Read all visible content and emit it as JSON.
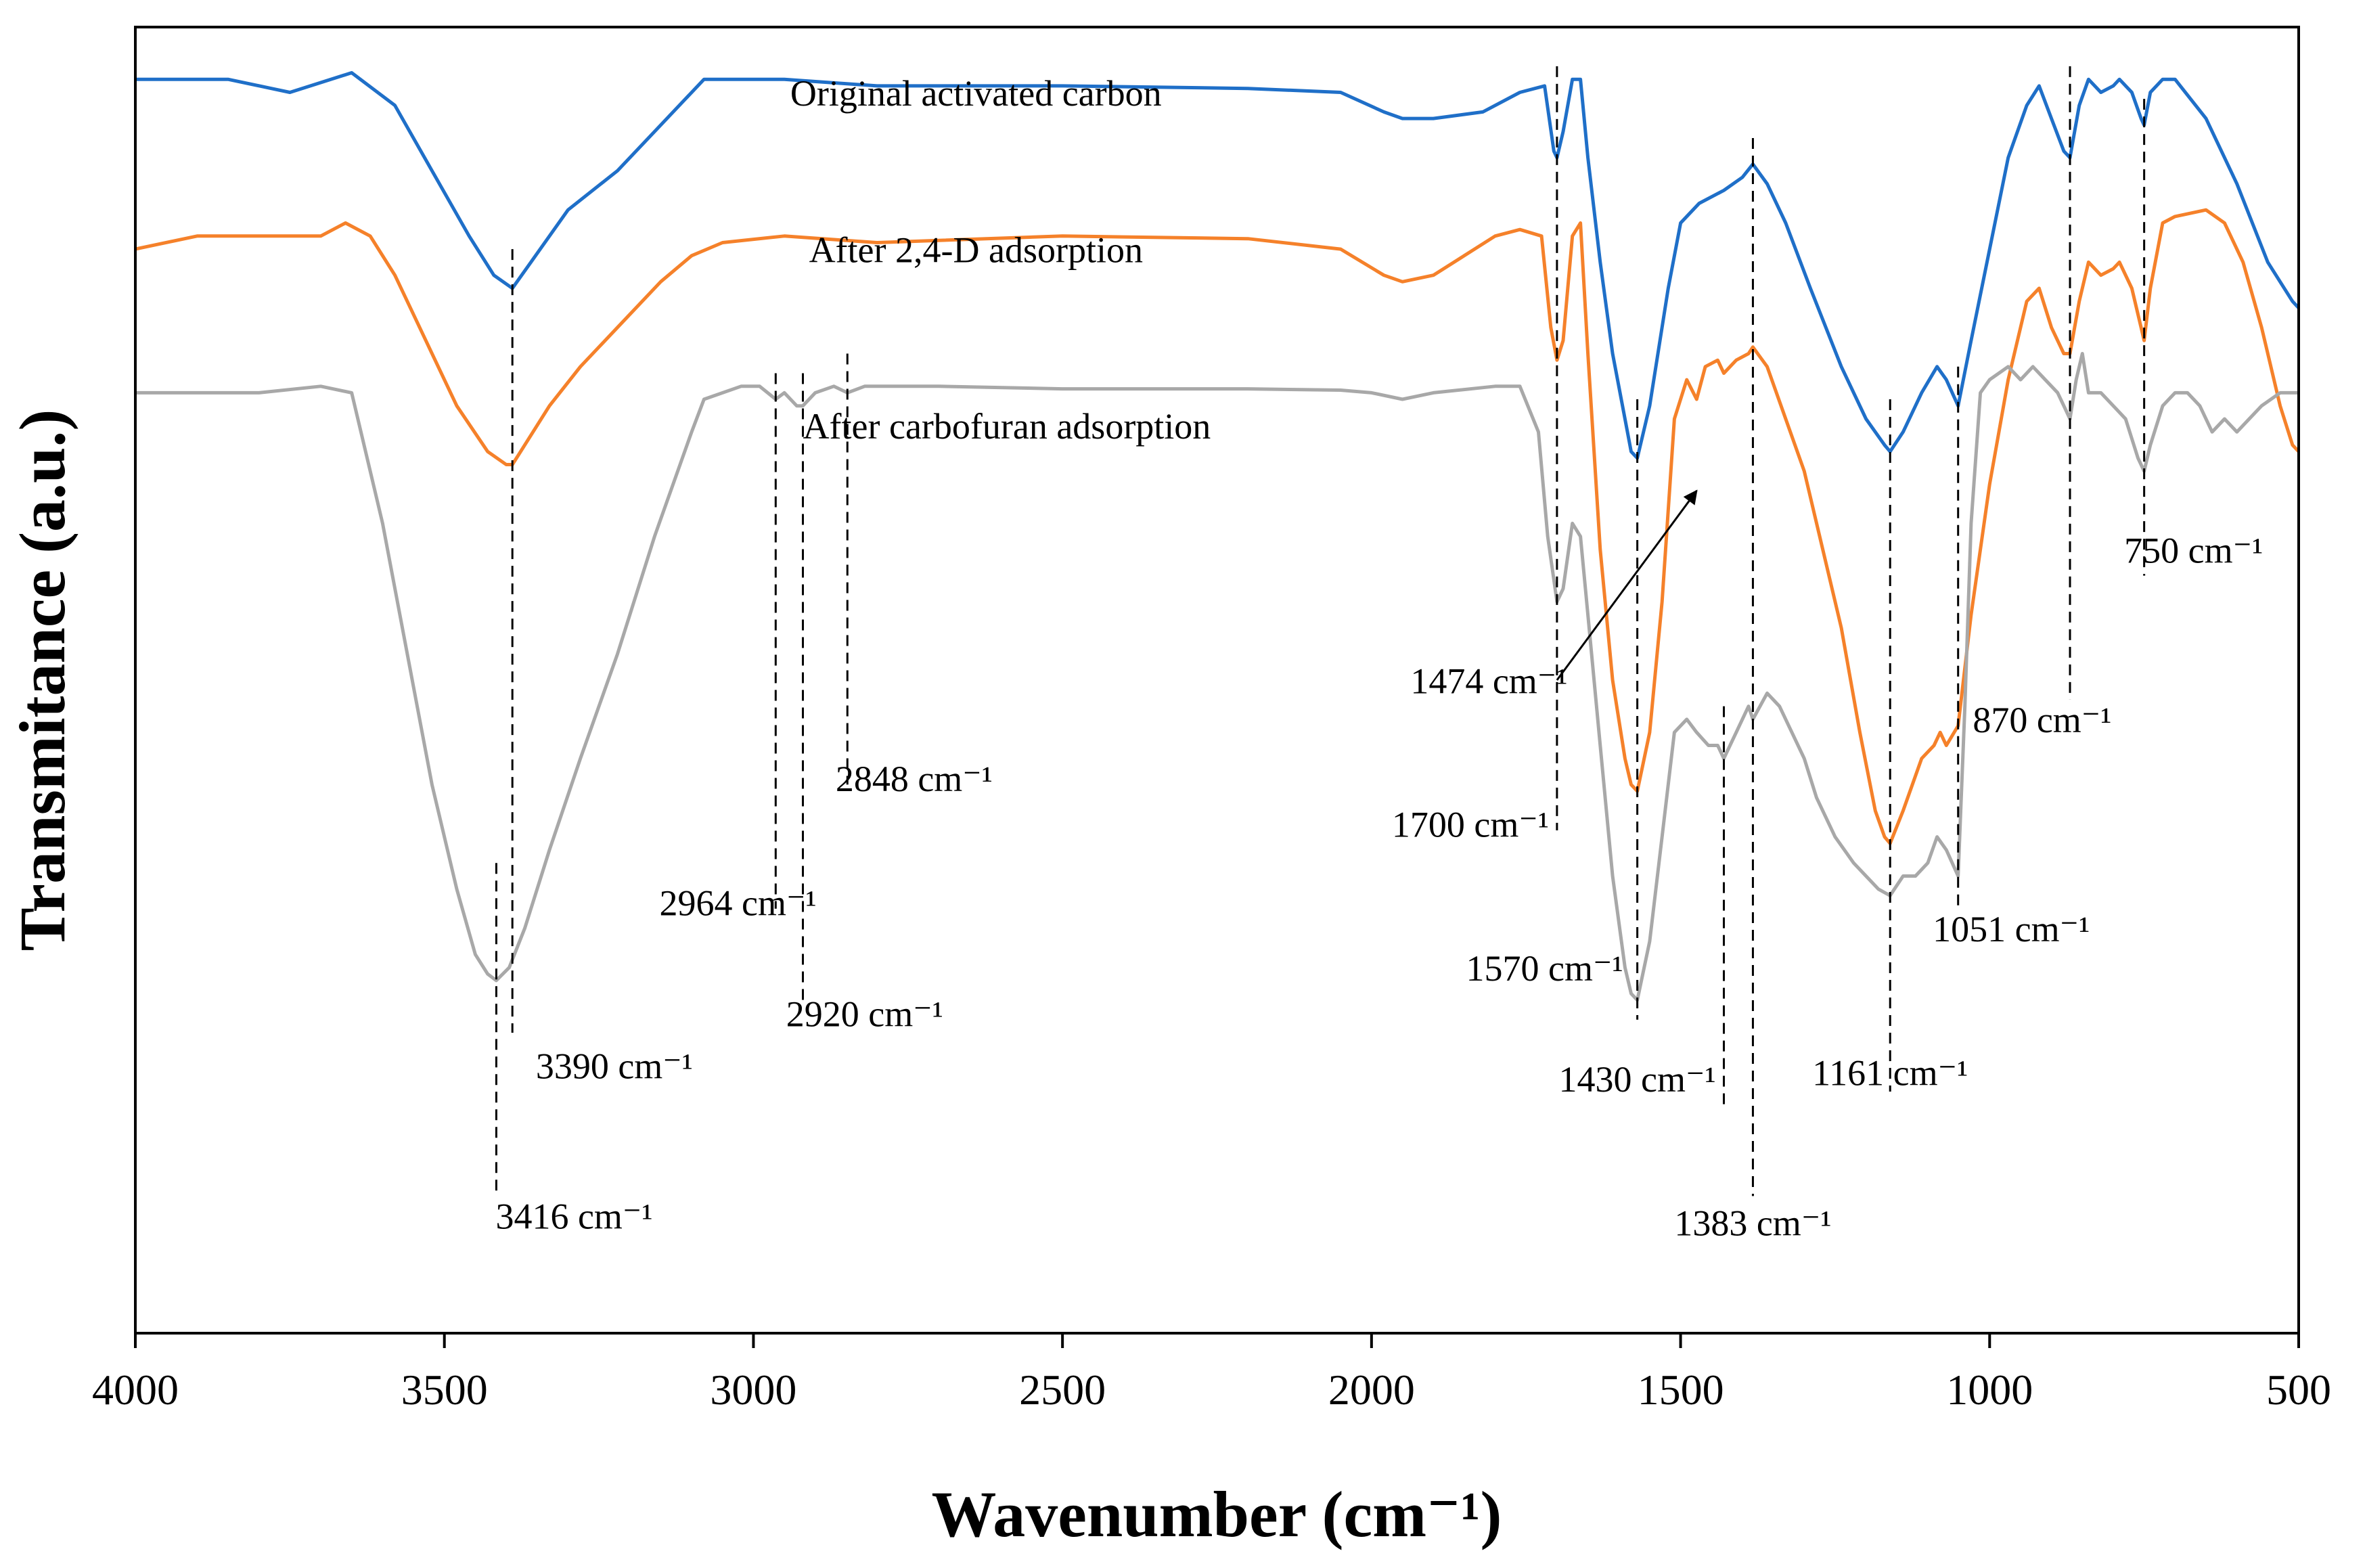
{
  "chart_data": {
    "type": "line",
    "title": "",
    "xlabel": "Wavenumber (cm⁻¹)",
    "ylabel": "Transmitance (a.u.)",
    "xlim": [
      4000,
      500
    ],
    "x_reversed": true,
    "xticks": [
      4000,
      3500,
      3000,
      2500,
      2000,
      1500,
      1000,
      500
    ],
    "xtick_labels": [
      "4000",
      "3500",
      "3000",
      "2500",
      "2000",
      "1500",
      "1000",
      "500"
    ],
    "ylim": [
      0,
      100
    ],
    "yticks": false,
    "grid": false,
    "series": [
      {
        "name": "Original activated carbon",
        "color": "#1f6fc8",
        "points": [
          [
            4000,
            96
          ],
          [
            3850,
            96
          ],
          [
            3750,
            95
          ],
          [
            3650,
            96.5
          ],
          [
            3580,
            94
          ],
          [
            3520,
            89
          ],
          [
            3460,
            84
          ],
          [
            3420,
            81
          ],
          [
            3390,
            80
          ],
          [
            3360,
            82
          ],
          [
            3300,
            86
          ],
          [
            3220,
            89
          ],
          [
            3150,
            92.5
          ],
          [
            3080,
            96
          ],
          [
            2950,
            96
          ],
          [
            2800,
            95.5
          ],
          [
            2500,
            95.5
          ],
          [
            2200,
            95.3
          ],
          [
            2050,
            95
          ],
          [
            1980,
            93.5
          ],
          [
            1950,
            93
          ],
          [
            1900,
            93
          ],
          [
            1820,
            93.5
          ],
          [
            1760,
            95
          ],
          [
            1720,
            95.5
          ],
          [
            1705,
            90.5
          ],
          [
            1700,
            90
          ],
          [
            1690,
            92
          ],
          [
            1675,
            96
          ],
          [
            1662,
            96
          ],
          [
            1650,
            90
          ],
          [
            1630,
            82
          ],
          [
            1610,
            75
          ],
          [
            1590,
            70
          ],
          [
            1580,
            67.5
          ],
          [
            1570,
            67
          ],
          [
            1550,
            71
          ],
          [
            1520,
            80
          ],
          [
            1500,
            85
          ],
          [
            1470,
            86.5
          ],
          [
            1430,
            87.5
          ],
          [
            1400,
            88.5
          ],
          [
            1383,
            89.5
          ],
          [
            1360,
            88
          ],
          [
            1330,
            85
          ],
          [
            1290,
            80
          ],
          [
            1240,
            74
          ],
          [
            1200,
            70
          ],
          [
            1170,
            68
          ],
          [
            1161,
            67.5
          ],
          [
            1140,
            69
          ],
          [
            1110,
            72
          ],
          [
            1085,
            74
          ],
          [
            1070,
            73
          ],
          [
            1051,
            71
          ],
          [
            1030,
            76
          ],
          [
            1000,
            83
          ],
          [
            970,
            90
          ],
          [
            940,
            94
          ],
          [
            920,
            95.5
          ],
          [
            900,
            93
          ],
          [
            880,
            90.5
          ],
          [
            870,
            90
          ],
          [
            855,
            94
          ],
          [
            840,
            96
          ],
          [
            820,
            95
          ],
          [
            800,
            95.5
          ],
          [
            790,
            96
          ],
          [
            770,
            95
          ],
          [
            755,
            93
          ],
          [
            750,
            92.5
          ],
          [
            740,
            95
          ],
          [
            720,
            96
          ],
          [
            700,
            96
          ],
          [
            650,
            93
          ],
          [
            600,
            88
          ],
          [
            550,
            82
          ],
          [
            510,
            79
          ],
          [
            500,
            78.5
          ]
        ]
      },
      {
        "name": "After 2,4-D adsorption",
        "color": "#f5812a",
        "points": [
          [
            4000,
            83
          ],
          [
            3900,
            84
          ],
          [
            3800,
            84
          ],
          [
            3700,
            84
          ],
          [
            3660,
            85
          ],
          [
            3620,
            84
          ],
          [
            3580,
            81
          ],
          [
            3530,
            76
          ],
          [
            3480,
            71
          ],
          [
            3430,
            67.5
          ],
          [
            3400,
            66.5
          ],
          [
            3390,
            66.5
          ],
          [
            3370,
            68
          ],
          [
            3330,
            71
          ],
          [
            3280,
            74
          ],
          [
            3220,
            77
          ],
          [
            3150,
            80.5
          ],
          [
            3100,
            82.5
          ],
          [
            3050,
            83.5
          ],
          [
            2950,
            84
          ],
          [
            2800,
            83.5
          ],
          [
            2500,
            84
          ],
          [
            2200,
            83.8
          ],
          [
            2050,
            83
          ],
          [
            1980,
            81
          ],
          [
            1950,
            80.5
          ],
          [
            1900,
            81
          ],
          [
            1850,
            82.5
          ],
          [
            1800,
            84
          ],
          [
            1760,
            84.5
          ],
          [
            1725,
            84
          ],
          [
            1710,
            77
          ],
          [
            1700,
            74.5
          ],
          [
            1690,
            76
          ],
          [
            1675,
            84
          ],
          [
            1662,
            85
          ],
          [
            1650,
            75
          ],
          [
            1630,
            60
          ],
          [
            1610,
            50
          ],
          [
            1590,
            44
          ],
          [
            1580,
            42
          ],
          [
            1570,
            41.5
          ],
          [
            1550,
            46
          ],
          [
            1530,
            56
          ],
          [
            1510,
            70
          ],
          [
            1490,
            73
          ],
          [
            1474,
            71.5
          ],
          [
            1460,
            74
          ],
          [
            1440,
            74.5
          ],
          [
            1430,
            73.5
          ],
          [
            1410,
            74.5
          ],
          [
            1390,
            75
          ],
          [
            1383,
            75.5
          ],
          [
            1360,
            74
          ],
          [
            1330,
            70
          ],
          [
            1300,
            66
          ],
          [
            1270,
            60
          ],
          [
            1240,
            54
          ],
          [
            1210,
            46
          ],
          [
            1185,
            40
          ],
          [
            1170,
            38
          ],
          [
            1161,
            37.5
          ],
          [
            1140,
            40
          ],
          [
            1110,
            44
          ],
          [
            1090,
            45
          ],
          [
            1080,
            46
          ],
          [
            1070,
            45
          ],
          [
            1051,
            46.5
          ],
          [
            1030,
            55
          ],
          [
            1000,
            65
          ],
          [
            970,
            73
          ],
          [
            940,
            79
          ],
          [
            920,
            80
          ],
          [
            900,
            77
          ],
          [
            880,
            75
          ],
          [
            870,
            75
          ],
          [
            855,
            79
          ],
          [
            840,
            82
          ],
          [
            820,
            81
          ],
          [
            800,
            81.5
          ],
          [
            790,
            82
          ],
          [
            770,
            80
          ],
          [
            755,
            77
          ],
          [
            750,
            76
          ],
          [
            740,
            80
          ],
          [
            720,
            85
          ],
          [
            700,
            85.5
          ],
          [
            650,
            86
          ],
          [
            620,
            85
          ],
          [
            590,
            82
          ],
          [
            560,
            77
          ],
          [
            530,
            71
          ],
          [
            510,
            68
          ],
          [
            500,
            67.5
          ]
        ]
      },
      {
        "name": "After carbofuran adsorption",
        "color": "#a8a8a8",
        "points": [
          [
            4000,
            72
          ],
          [
            3900,
            72
          ],
          [
            3800,
            72
          ],
          [
            3700,
            72.5
          ],
          [
            3650,
            72
          ],
          [
            3600,
            62
          ],
          [
            3560,
            52
          ],
          [
            3520,
            42
          ],
          [
            3480,
            34
          ],
          [
            3450,
            29
          ],
          [
            3430,
            27.5
          ],
          [
            3416,
            27
          ],
          [
            3395,
            28
          ],
          [
            3370,
            31
          ],
          [
            3330,
            37
          ],
          [
            3280,
            44
          ],
          [
            3220,
            52
          ],
          [
            3160,
            61
          ],
          [
            3100,
            69
          ],
          [
            3080,
            71.5
          ],
          [
            3020,
            72.5
          ],
          [
            2990,
            72.5
          ],
          [
            2964,
            71.5
          ],
          [
            2950,
            72
          ],
          [
            2930,
            71
          ],
          [
            2920,
            71
          ],
          [
            2900,
            72
          ],
          [
            2870,
            72.5
          ],
          [
            2848,
            72
          ],
          [
            2820,
            72.5
          ],
          [
            2700,
            72.5
          ],
          [
            2500,
            72.3
          ],
          [
            2200,
            72.3
          ],
          [
            2050,
            72.2
          ],
          [
            2000,
            72
          ],
          [
            1950,
            71.5
          ],
          [
            1900,
            72
          ],
          [
            1800,
            72.5
          ],
          [
            1760,
            72.5
          ],
          [
            1730,
            69
          ],
          [
            1715,
            61
          ],
          [
            1700,
            56
          ],
          [
            1690,
            57
          ],
          [
            1675,
            62
          ],
          [
            1662,
            61
          ],
          [
            1650,
            55
          ],
          [
            1630,
            45
          ],
          [
            1610,
            35
          ],
          [
            1590,
            28
          ],
          [
            1580,
            26
          ],
          [
            1570,
            25.5
          ],
          [
            1550,
            30
          ],
          [
            1530,
            38
          ],
          [
            1510,
            46
          ],
          [
            1490,
            47
          ],
          [
            1474,
            46
          ],
          [
            1455,
            45
          ],
          [
            1440,
            45
          ],
          [
            1430,
            44
          ],
          [
            1410,
            46
          ],
          [
            1390,
            48
          ],
          [
            1383,
            47
          ],
          [
            1360,
            49
          ],
          [
            1340,
            48
          ],
          [
            1320,
            46
          ],
          [
            1300,
            44
          ],
          [
            1280,
            41
          ],
          [
            1250,
            38
          ],
          [
            1220,
            36
          ],
          [
            1200,
            35
          ],
          [
            1180,
            34
          ],
          [
            1161,
            33.5
          ],
          [
            1140,
            35
          ],
          [
            1120,
            35
          ],
          [
            1100,
            36
          ],
          [
            1085,
            38
          ],
          [
            1070,
            37
          ],
          [
            1051,
            35
          ],
          [
            1040,
            48
          ],
          [
            1030,
            62
          ],
          [
            1015,
            72
          ],
          [
            1000,
            73
          ],
          [
            970,
            74
          ],
          [
            950,
            73
          ],
          [
            930,
            74
          ],
          [
            910,
            73
          ],
          [
            890,
            72
          ],
          [
            870,
            70
          ],
          [
            860,
            73
          ],
          [
            850,
            75
          ],
          [
            840,
            72
          ],
          [
            820,
            72
          ],
          [
            800,
            71
          ],
          [
            780,
            70
          ],
          [
            760,
            67
          ],
          [
            750,
            66
          ],
          [
            740,
            68
          ],
          [
            720,
            71
          ],
          [
            700,
            72
          ],
          [
            680,
            72
          ],
          [
            660,
            71
          ],
          [
            640,
            69
          ],
          [
            620,
            70
          ],
          [
            600,
            69
          ],
          [
            580,
            70
          ],
          [
            560,
            71
          ],
          [
            530,
            72
          ],
          [
            500,
            72
          ]
        ]
      }
    ],
    "series_labels": [
      {
        "text": "Original activated carbon",
        "x": 2640,
        "y": 94
      },
      {
        "text": "After 2,4-D adsorption",
        "x": 2640,
        "y": 82
      },
      {
        "text": "After carbofuran adsorption",
        "x": 2590,
        "y": 68.5
      }
    ],
    "annotations": [
      {
        "text": "3390 cm⁻¹",
        "x": 3390,
        "y_top": 83,
        "y_bottom": 23,
        "label_x": 3225,
        "label_y": 19.5
      },
      {
        "text": "3416 cm⁻¹",
        "x": 3416,
        "y_top": 36,
        "y_bottom": 10.5,
        "label_x": 3290,
        "label_y": 8
      },
      {
        "text": "2964 cm⁻¹",
        "x": 2964,
        "y_top": 73.5,
        "y_bottom": 32.5,
        "label_x": 3025,
        "label_y": 32
      },
      {
        "text": "2920 cm⁻¹",
        "x": 2920,
        "y_top": 73.5,
        "y_bottom": 25,
        "label_x": 2820,
        "label_y": 23.5
      },
      {
        "text": "2848 cm⁻¹",
        "x": 2848,
        "y_top": 75,
        "y_bottom": 42,
        "label_x": 2740,
        "label_y": 41.5
      },
      {
        "text": "1700 cm⁻¹",
        "x": 1700,
        "y_top": 97,
        "y_bottom": 38.5,
        "label_x": 1840,
        "label_y": 38
      },
      {
        "text": "1570 cm⁻¹",
        "x": 1570,
        "y_top": 71.5,
        "y_bottom": 24,
        "label_x": 1720,
        "label_y": 27
      },
      {
        "text": "1430 cm⁻¹",
        "x": 1430,
        "y_top": 48,
        "y_bottom": 17.5,
        "label_x": 1570,
        "label_y": 18.5
      },
      {
        "text": "1383 cm⁻¹",
        "x": 1383,
        "y_top": 91.5,
        "y_bottom": 10.5,
        "label_x": 1383,
        "label_y": 7.5
      },
      {
        "text": "1161 cm⁻¹",
        "x": 1161,
        "y_top": 71.5,
        "y_bottom": 18.5,
        "label_x": 1161,
        "label_y": 19
      },
      {
        "text": "1051 cm⁻¹",
        "x": 1051,
        "y_top": 74,
        "y_bottom": 32.5,
        "label_x": 965,
        "label_y": 30
      },
      {
        "text": "870 cm⁻¹",
        "x": 870,
        "y_top": 97,
        "y_bottom": 48.5,
        "label_x": 915,
        "label_y": 46
      },
      {
        "text": "750 cm⁻¹",
        "x": 750,
        "y_top": 94.5,
        "y_bottom": 58,
        "label_x": 670,
        "label_y": 59
      }
    ],
    "arrow": {
      "text": "1474 cm⁻¹",
      "from": [
        1700,
        50
      ],
      "to": [
        1474,
        64.5
      ],
      "label_x": 1810,
      "label_y": 49
    }
  }
}
